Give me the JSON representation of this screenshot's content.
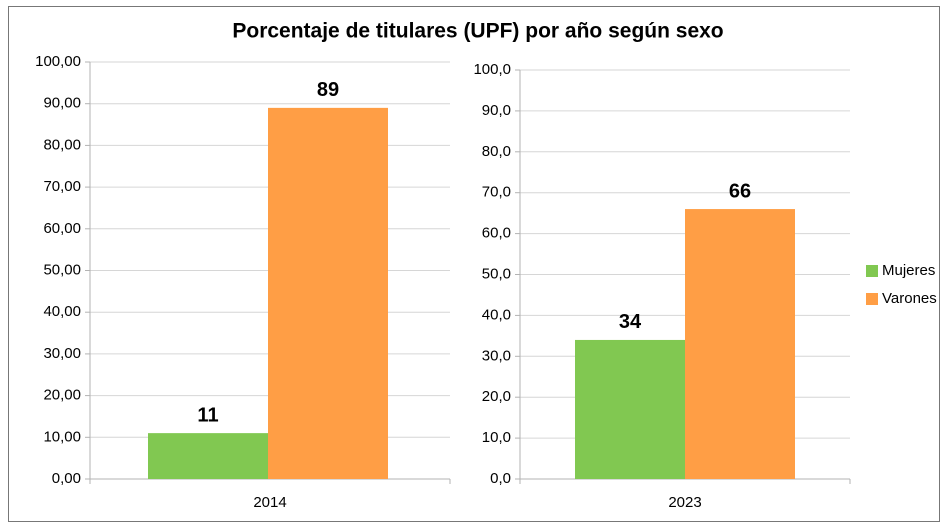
{
  "chart_data": {
    "type": "bar",
    "title": "Porcentaje de titulares (UPF) por año según sexo",
    "categories": [
      "2014",
      "2023"
    ],
    "series": [
      {
        "name": "Mujeres",
        "color": "#81c851",
        "values": [
          11,
          34
        ]
      },
      {
        "name": "Varones",
        "color": "#ff9e45",
        "values": [
          89,
          66
        ]
      }
    ],
    "grid": true,
    "axes": [
      {
        "ylim": [
          0,
          100
        ],
        "yticks": [
          {
            "value": 0,
            "label": "0,00"
          },
          {
            "value": 10,
            "label": "10,00"
          },
          {
            "value": 20,
            "label": "20,00"
          },
          {
            "value": 30,
            "label": "30,00"
          },
          {
            "value": 40,
            "label": "40,00"
          },
          {
            "value": 50,
            "label": "50,00"
          },
          {
            "value": 60,
            "label": "60,00"
          },
          {
            "value": 70,
            "label": "70,00"
          },
          {
            "value": 80,
            "label": "80,00"
          },
          {
            "value": 90,
            "label": "90,00"
          },
          {
            "value": 100,
            "label": "100,00"
          }
        ]
      },
      {
        "ylim": [
          0,
          100
        ],
        "yticks": [
          {
            "value": 0,
            "label": "0,0"
          },
          {
            "value": 10,
            "label": "10,0"
          },
          {
            "value": 20,
            "label": "20,0"
          },
          {
            "value": 30,
            "label": "30,0"
          },
          {
            "value": 40,
            "label": "40,0"
          },
          {
            "value": 50,
            "label": "50,0"
          },
          {
            "value": 60,
            "label": "60,0"
          },
          {
            "value": 70,
            "label": "70,0"
          },
          {
            "value": 80,
            "label": "80,0"
          },
          {
            "value": 90,
            "label": "90,0"
          },
          {
            "value": 100,
            "label": "100,0"
          }
        ]
      }
    ]
  }
}
